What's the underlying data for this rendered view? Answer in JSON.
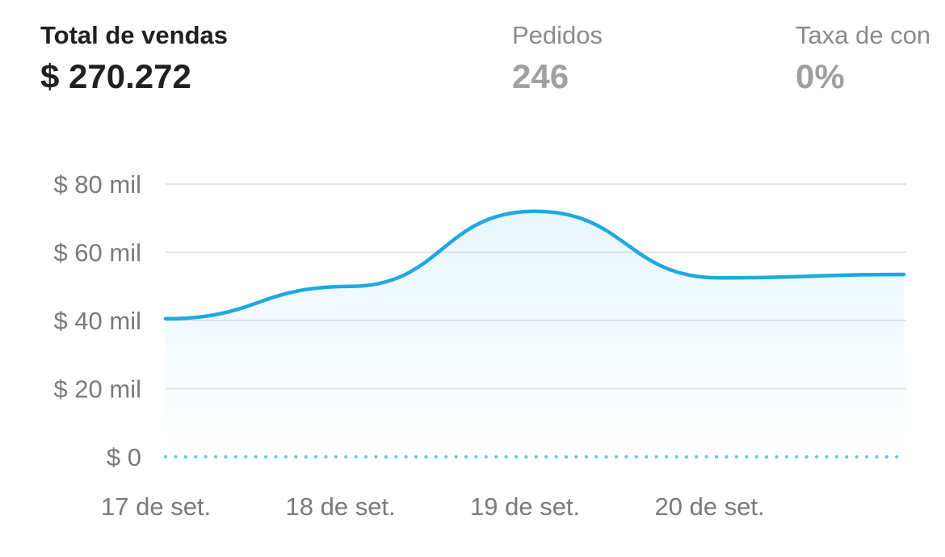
{
  "metrics": [
    {
      "label": "Total de vendas",
      "value": "$ 270.272",
      "active": true
    },
    {
      "label": "Pedidos",
      "value": "246",
      "active": false
    },
    {
      "label": "Taxa de con",
      "value": "0%",
      "active": false
    }
  ],
  "chart_data": {
    "type": "line",
    "title": "",
    "xlabel": "",
    "ylabel": "",
    "x": [
      "17 de set.",
      "18 de set.",
      "19 de set.",
      "20 de set.",
      ""
    ],
    "y_ticks": [
      "$ 0",
      "$ 20 mil",
      "$ 40 mil",
      "$ 60 mil",
      "$ 80 mil"
    ],
    "ylim": [
      0,
      80000
    ],
    "grid": true,
    "legend": "none",
    "series": [
      {
        "values": [
          40500,
          50000,
          72000,
          52500,
          53500
        ],
        "color": "#1fa8e2"
      }
    ],
    "baseline_style": "dotted",
    "baseline_color": "#6fc3de"
  }
}
